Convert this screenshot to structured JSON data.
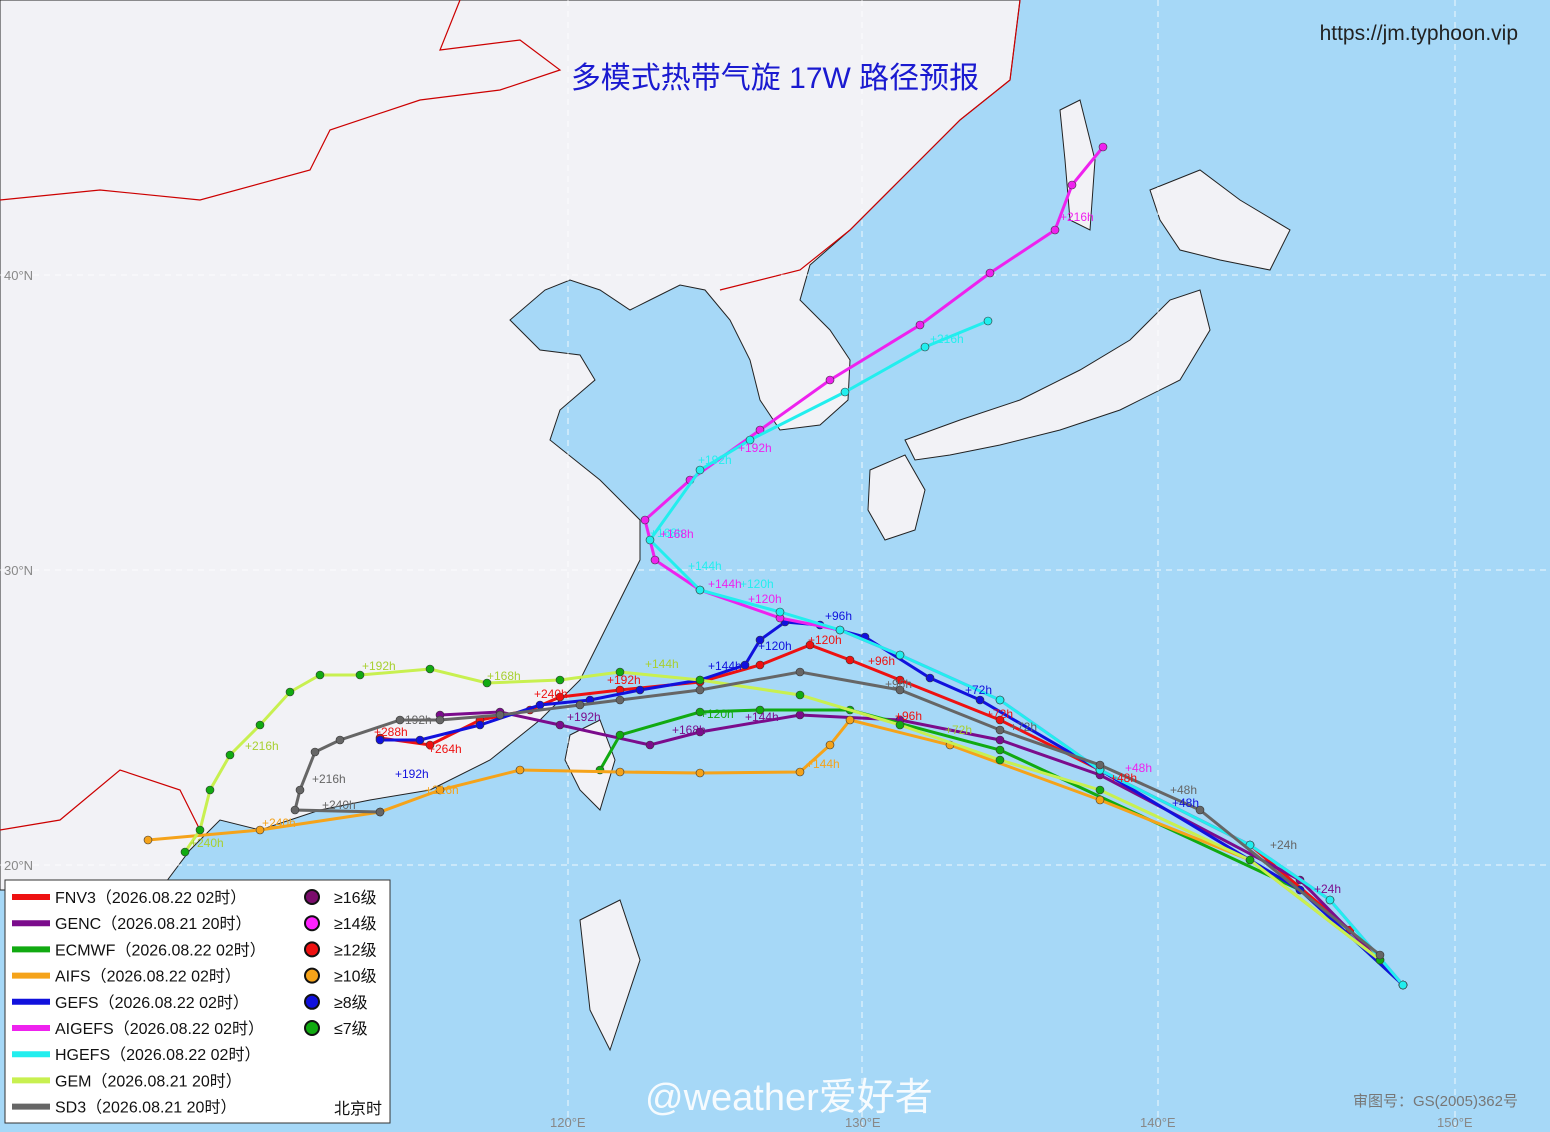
{
  "header": {
    "title": "多模式热带气旋 17W 路径预报",
    "url": "https://jm.typhoon.vip"
  },
  "axes": {
    "lat_labels": [
      "40°N",
      "30°N",
      "20°N"
    ],
    "lon_labels": [
      "120°E",
      "130°E",
      "140°E",
      "150°E"
    ]
  },
  "legend": {
    "models": [
      {
        "name": "FNV3",
        "run": "（2026.08.22 02时）"
      },
      {
        "name": "GENC",
        "run": "（2026.08.21 20时）"
      },
      {
        "name": "ECMWF",
        "run": "（2026.08.22 02时）"
      },
      {
        "name": "AIFS",
        "run": "（2026.08.22 02时）"
      },
      {
        "name": "GEFS",
        "run": "（2026.08.22 02时）"
      },
      {
        "name": "AIGEFS",
        "run": "（2026.08.22 02时）"
      },
      {
        "name": "HGEFS",
        "run": "（2026.08.22 02时）"
      },
      {
        "name": "GEM",
        "run": "（2026.08.21 20时）"
      },
      {
        "name": "SD3",
        "run": "（2026.08.21 20时）"
      }
    ],
    "intensity": [
      "≥16级",
      "≥14级",
      "≥12级",
      "≥10级",
      "≥8级",
      "≤7级"
    ],
    "time_note": "北京时"
  },
  "track_labels": [
    "+216h",
    "+216h",
    "+192h",
    "+192h",
    "+168h",
    "+168h",
    "+144h",
    "+144h",
    "+120h",
    "+120h",
    "+96h",
    "+120h",
    "+144h",
    "+120h",
    "+96h",
    "+96h",
    "+72h",
    "+72h",
    "+48h",
    "+48h",
    "+24h",
    "+24h",
    "+192h",
    "+168h",
    "+144h",
    "+216h",
    "+240h",
    "+240h",
    "+216h",
    "+192h",
    "+192h",
    "+192h",
    "+192h",
    "+240h",
    "+264h",
    "+288h",
    "+240h",
    "+216h",
    "+144h",
    "+168h",
    "+144h",
    "+120h",
    "+96h",
    "+72h",
    "+72h",
    "+48h",
    "+48h"
  ],
  "watermark": "@weather爱好者",
  "approval": "审图号：GS(2005)362号"
}
